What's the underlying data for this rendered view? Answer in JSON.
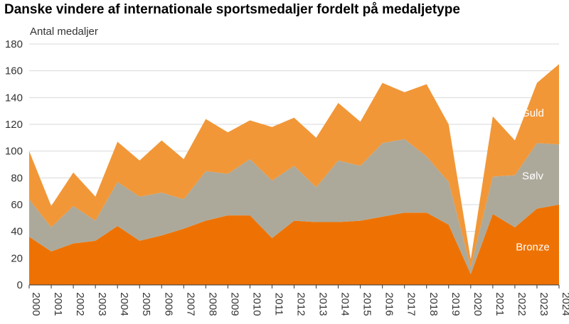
{
  "chart_data": {
    "type": "area",
    "stacked": true,
    "title": "Danske vindere af internationale sportsmedaljer fordelt på medaljetype",
    "ylabel": "Antal medaljer",
    "xlabel": "",
    "ylim": [
      0,
      180
    ],
    "yticks": [
      0,
      20,
      40,
      60,
      80,
      100,
      120,
      140,
      160,
      180
    ],
    "grid": true,
    "legend": "inline-right",
    "x": [
      "2000",
      "2001",
      "2002",
      "2003",
      "2004",
      "2005",
      "2006",
      "2007",
      "2008",
      "2009",
      "2010",
      "2011",
      "2012",
      "2013",
      "2014",
      "2015",
      "2016",
      "2017",
      "2018",
      "2019",
      "2020",
      "2021",
      "2022",
      "2023",
      "2024"
    ],
    "series": [
      {
        "name": "Bronze",
        "color": "#ee7203",
        "values": [
          36,
          25,
          31,
          33,
          44,
          33,
          37,
          42,
          48,
          52,
          52,
          35,
          48,
          47,
          47,
          48,
          51,
          54,
          54,
          45,
          8,
          53,
          43,
          57,
          60
        ]
      },
      {
        "name": "Sølv",
        "color": "#aca99b",
        "values": [
          28,
          18,
          28,
          15,
          33,
          33,
          32,
          22,
          37,
          31,
          42,
          43,
          41,
          26,
          46,
          41,
          55,
          55,
          42,
          32,
          5,
          28,
          39,
          49,
          45
        ]
      },
      {
        "name": "Guld",
        "color": "#f19738",
        "values": [
          36,
          16,
          25,
          18,
          30,
          27,
          39,
          30,
          39,
          31,
          29,
          40,
          36,
          37,
          43,
          33,
          45,
          35,
          54,
          43,
          6,
          45,
          26,
          45,
          60
        ]
      }
    ]
  }
}
